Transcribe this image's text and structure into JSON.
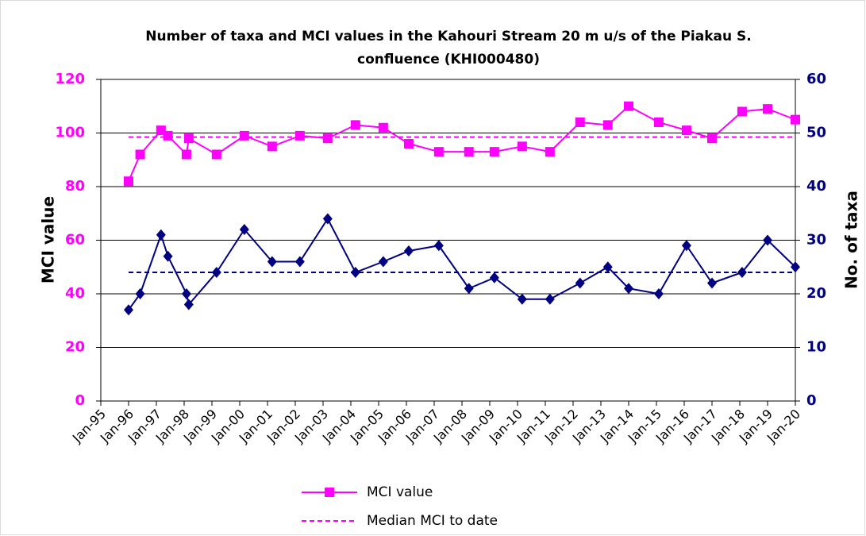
{
  "chart_data": {
    "type": "line",
    "title": [
      "Number of taxa and MCI values in the Kahouri Stream 20 m u/s of the Piakau S.",
      "confluence (KHI000480)"
    ],
    "ylabel": "MCI value",
    "y2label": "No. of taxa",
    "xlim": [
      "1995-01",
      "2020-01"
    ],
    "xticks": [
      {
        "value": "1995-01",
        "label": "Jan-95"
      },
      {
        "value": "1996-01",
        "label": "Jan-96"
      },
      {
        "value": "1997-01",
        "label": "Jan-97"
      },
      {
        "value": "1998-01",
        "label": "Jan-98"
      },
      {
        "value": "1999-01",
        "label": "Jan-99"
      },
      {
        "value": "2000-01",
        "label": "Jan-00"
      },
      {
        "value": "2001-01",
        "label": "Jan-01"
      },
      {
        "value": "2002-01",
        "label": "Jan-02"
      },
      {
        "value": "2003-01",
        "label": "Jan-03"
      },
      {
        "value": "2004-01",
        "label": "Jan-04"
      },
      {
        "value": "2005-01",
        "label": "Jan-05"
      },
      {
        "value": "2006-01",
        "label": "Jan-06"
      },
      {
        "value": "2007-01",
        "label": "Jan-07"
      },
      {
        "value": "2008-01",
        "label": "Jan-08"
      },
      {
        "value": "2009-01",
        "label": "Jan-09"
      },
      {
        "value": "2010-01",
        "label": "Jan-10"
      },
      {
        "value": "2011-01",
        "label": "Jan-11"
      },
      {
        "value": "2012-01",
        "label": "Jan-12"
      },
      {
        "value": "2013-01",
        "label": "Jan-13"
      },
      {
        "value": "2014-01",
        "label": "Jan-14"
      },
      {
        "value": "2015-01",
        "label": "Jan-15"
      },
      {
        "value": "2016-01",
        "label": "Jan-16"
      },
      {
        "value": "2017-01",
        "label": "Jan-17"
      },
      {
        "value": "2018-01",
        "label": "Jan-18"
      },
      {
        "value": "2019-01",
        "label": "Jan-19"
      },
      {
        "value": "2020-01",
        "label": "Jan-20"
      }
    ],
    "ylim": [
      0,
      120
    ],
    "yticks": [
      0,
      20,
      40,
      60,
      80,
      100,
      120
    ],
    "y2lim": [
      0,
      60
    ],
    "y2ticks": [
      0,
      10,
      20,
      30,
      40,
      50,
      60
    ],
    "grid": true,
    "x": [
      "1996-01",
      "1996-06",
      "1997-03",
      "1997-06",
      "1998-02",
      "1998-03",
      "1999-03",
      "2000-03",
      "2001-03",
      "2002-03",
      "2003-03",
      "2004-03",
      "2005-03",
      "2006-02",
      "2007-03",
      "2008-04",
      "2009-03",
      "2010-03",
      "2011-03",
      "2012-04",
      "2013-04",
      "2014-01",
      "2015-02",
      "2016-02",
      "2017-01",
      "2018-02",
      "2019-01",
      "2020-01"
    ],
    "series": [
      {
        "name": "MCI value",
        "color": "#ff00ff",
        "marker": "square",
        "axis": "y",
        "values": [
          82,
          92,
          101,
          99,
          92,
          98,
          92,
          99,
          95,
          99,
          98,
          103,
          102,
          96,
          93,
          93,
          93,
          95,
          93,
          104,
          103,
          110,
          104,
          101,
          98,
          108,
          109,
          105
        ]
      },
      {
        "color": "#000080",
        "marker": "diamond",
        "axis": "y2",
        "values": [
          17,
          20,
          31,
          27,
          20,
          18,
          24,
          32,
          26,
          26,
          34,
          24,
          26,
          28,
          29,
          21,
          23,
          19,
          19,
          22,
          25,
          21,
          20,
          29,
          22,
          24,
          30,
          25
        ]
      }
    ],
    "medians": [
      {
        "name": "Median MCI to date",
        "color": "#ff00ff",
        "axis": "y",
        "value": 98.5
      },
      {
        "color": "#000080",
        "axis": "y2",
        "value": 24
      }
    ]
  }
}
